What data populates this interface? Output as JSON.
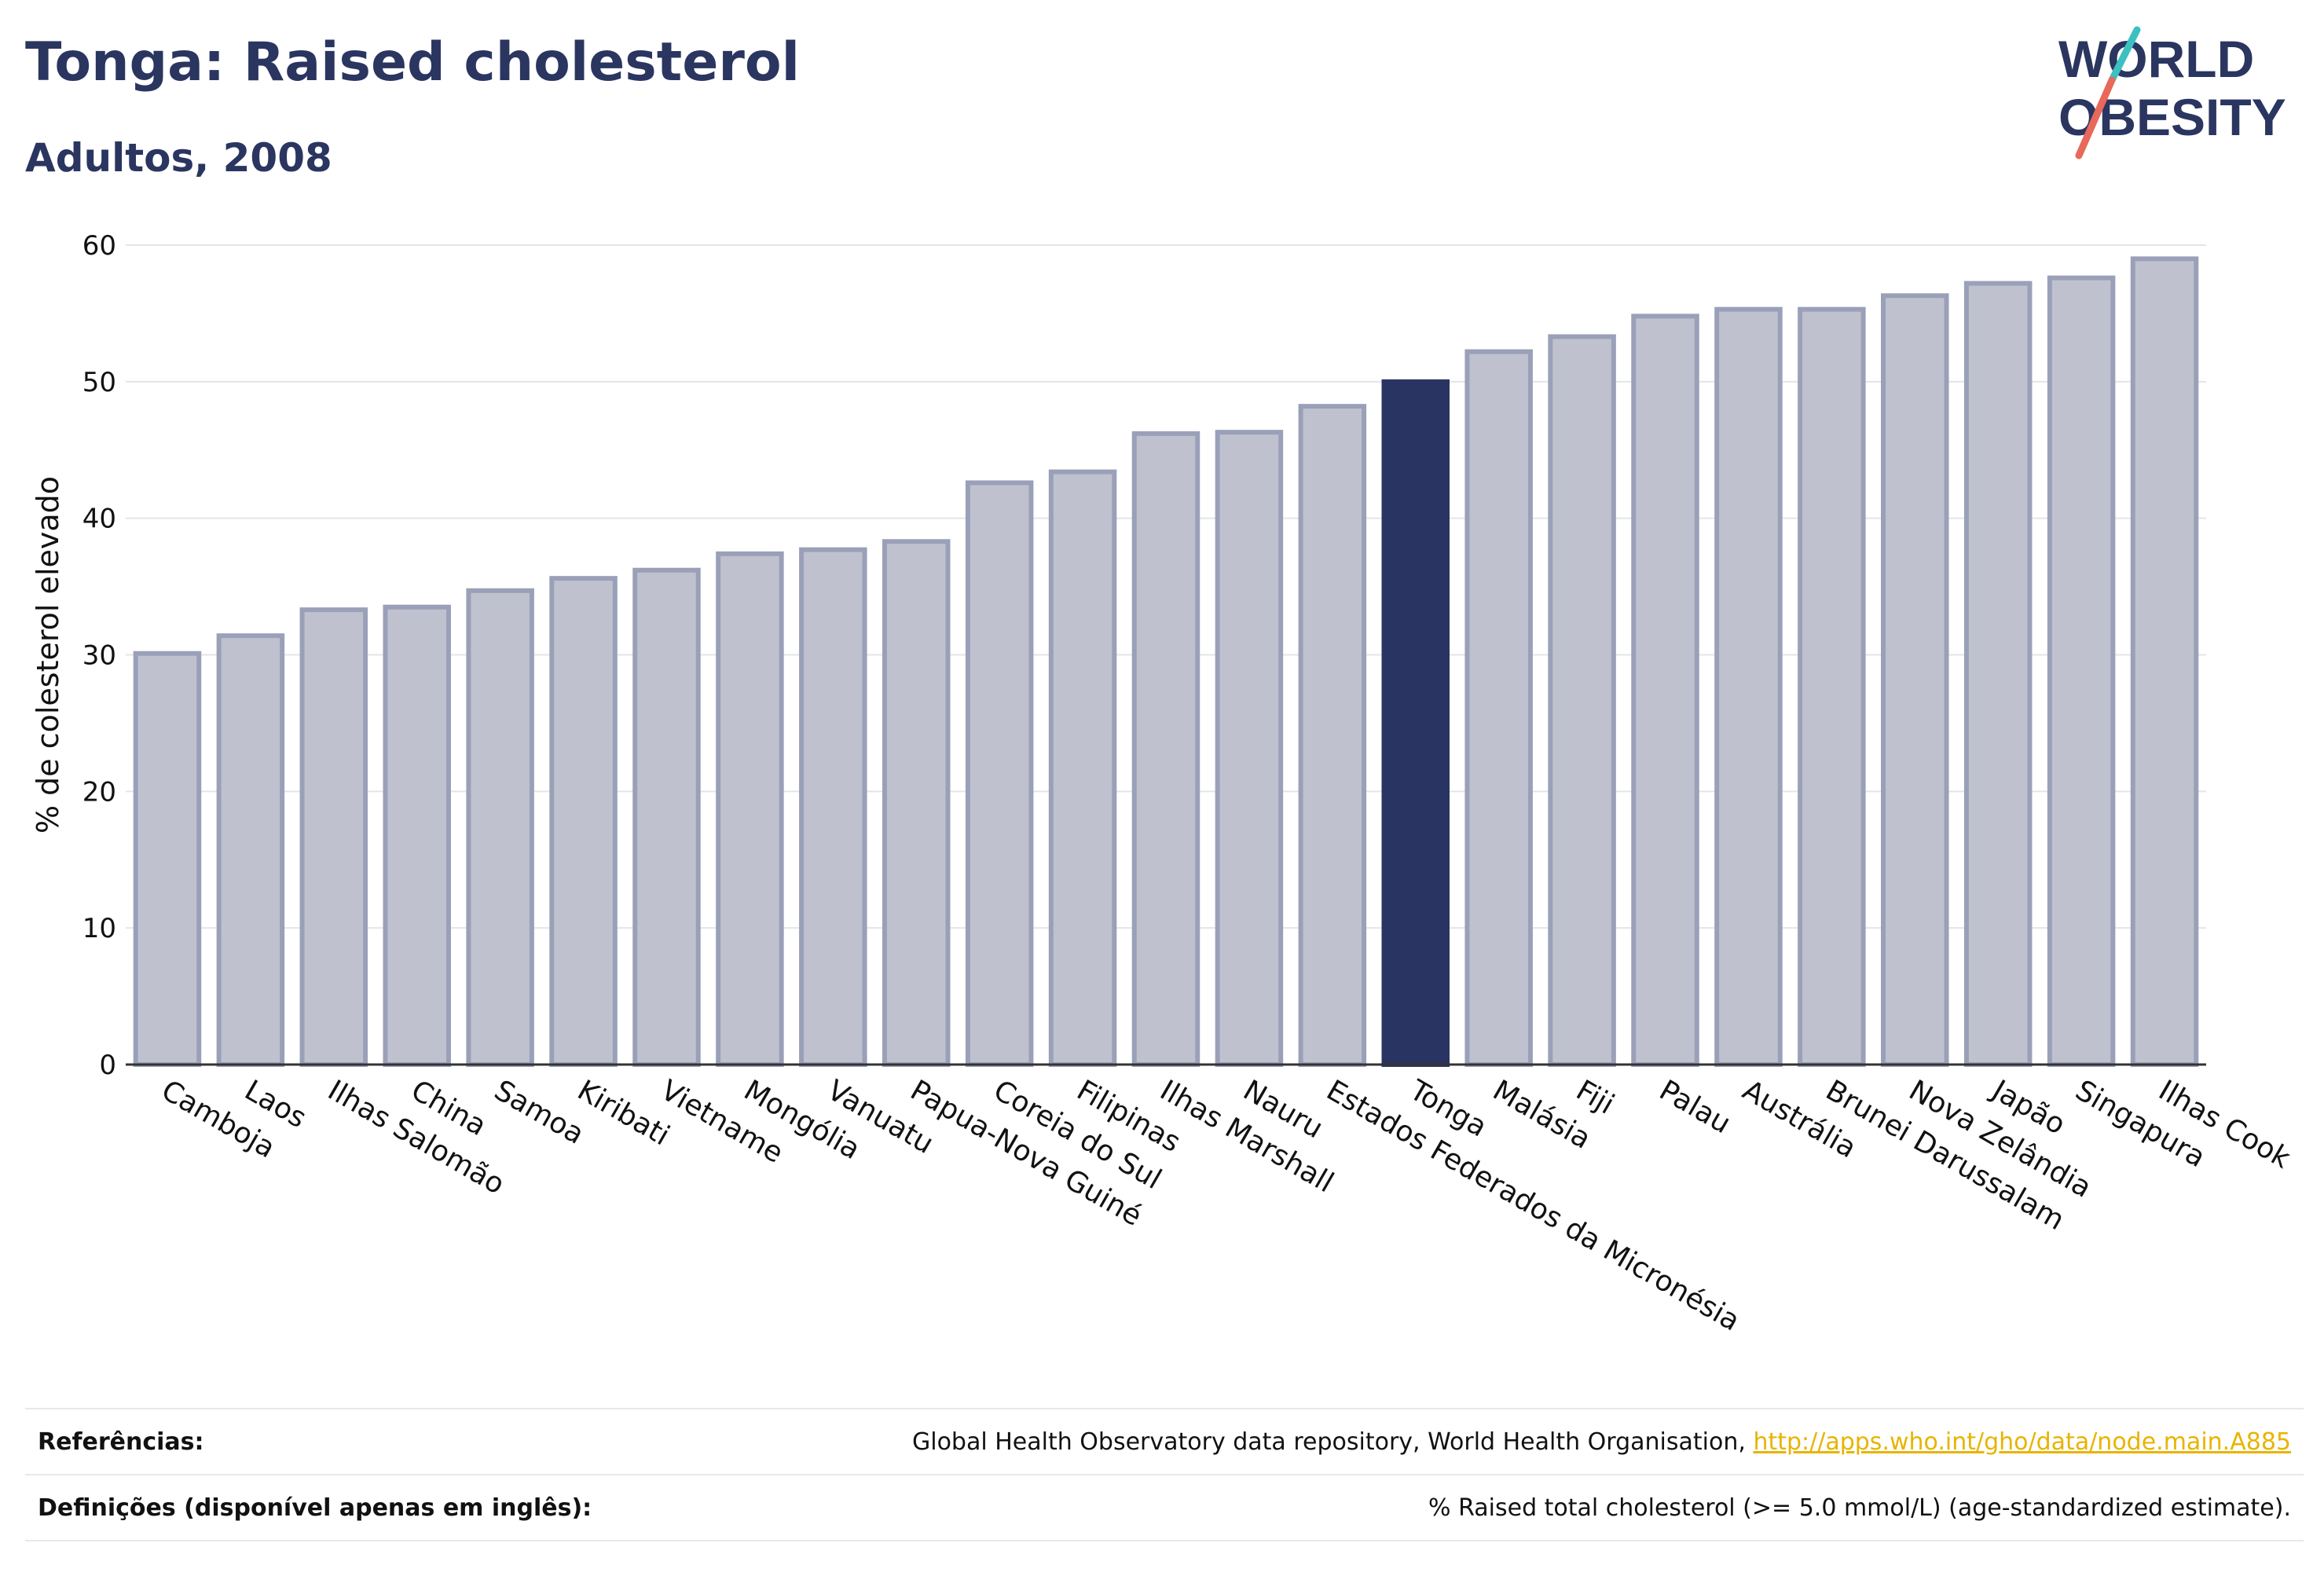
{
  "header": {
    "title": "Tonga: Raised cholesterol",
    "subtitle": "Adultos, 2008"
  },
  "logo": {
    "line1": "WORLD",
    "line2": "OBESITY",
    "accent_colors": [
      "#3cc0c0",
      "#e8685a"
    ]
  },
  "colors": {
    "bar": "#bfc2ce",
    "bar_border": "#9aa0b8",
    "highlight": "#293462",
    "text": "#2a3560"
  },
  "chart_data": {
    "type": "bar",
    "ylabel": "% de colesterol elevado",
    "ylim": [
      0,
      60
    ],
    "yticks": [
      0,
      10,
      20,
      30,
      40,
      50,
      60
    ],
    "grid": true,
    "highlight": "Tonga",
    "categories": [
      "Camboja",
      "Laos",
      "Ilhas Salomão",
      "China",
      "Samoa",
      "Kiribati",
      "Vietname",
      "Mongólia",
      "Vanuatu",
      "Papua-Nova Guiné",
      "Coreia do Sul",
      "Filipinas",
      "Ilhas Marshall",
      "Nauru",
      "Estados Federados da Micronésia",
      "Tonga",
      "Malásia",
      "Fiji",
      "Palau",
      "Austrália",
      "Brunei Darussalam",
      "Nova Zelândia",
      "Japão",
      "Singapura",
      "Ilhas Cook"
    ],
    "values": [
      30.1,
      31.4,
      33.3,
      33.5,
      34.7,
      35.6,
      36.2,
      37.4,
      37.7,
      38.3,
      42.6,
      43.4,
      46.2,
      46.3,
      48.2,
      50.0,
      52.2,
      53.3,
      54.8,
      55.3,
      55.3,
      56.3,
      57.2,
      57.6,
      59.0
    ]
  },
  "footer": {
    "references_label": "Referências:",
    "references_text": "Global Health Observatory data repository, World Health Organisation,",
    "references_link": "http://apps.who.int/gho/data/node.main.A885",
    "definitions_label": "Definições (disponível apenas em inglês):",
    "definitions_text": "% Raised total cholesterol (>= 5.0 mmol/L) (age-standardized estimate)."
  }
}
